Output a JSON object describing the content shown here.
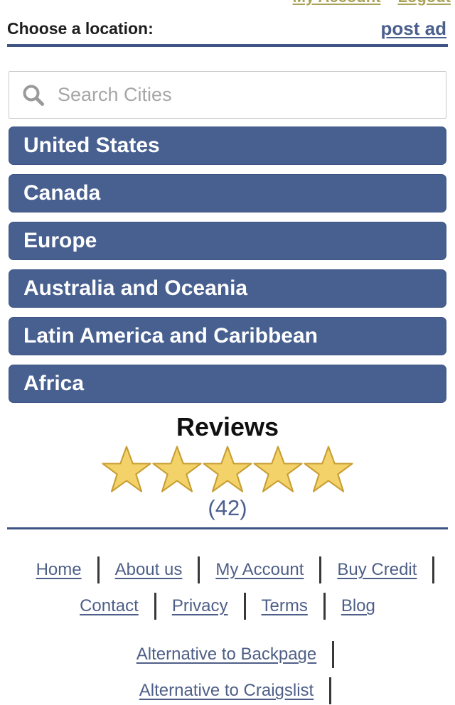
{
  "top_bar": {
    "links": [
      {
        "label": "My Account"
      },
      {
        "label": "Logout"
      }
    ],
    "link_color": "#a9a258"
  },
  "header": {
    "title": "Choose a location:",
    "post_ad_label": "post ad",
    "accent_color": "#3d5484"
  },
  "search": {
    "placeholder": "Search Cities",
    "value": ""
  },
  "locations": {
    "items": [
      "United States",
      "Canada",
      "Europe",
      "Australia and Oceania",
      "Latin America and Caribbean",
      "Africa"
    ],
    "button_color": "#486090"
  },
  "reviews": {
    "title": "Reviews",
    "star_count": 5,
    "rating_count": "(42)",
    "star_fill": "#f2d269",
    "star_stroke": "#c89e33"
  },
  "footer": {
    "link_color": "#4e5f87",
    "rows": [
      {
        "links": [
          "Home",
          "About us",
          "My Account",
          "Buy Credit"
        ],
        "trailing_separator": true,
        "partial": false,
        "gap_above": false
      },
      {
        "links": [
          "Contact",
          "Privacy",
          "Terms",
          "Blog"
        ],
        "trailing_separator": false,
        "partial": false,
        "gap_above": false
      },
      {
        "links": [
          "Alternative to Backpage"
        ],
        "trailing_separator": true,
        "partial": false,
        "gap_above": true
      },
      {
        "links": [
          "Alternative to Craigslist"
        ],
        "trailing_separator": true,
        "partial": true,
        "gap_above": false
      }
    ]
  }
}
